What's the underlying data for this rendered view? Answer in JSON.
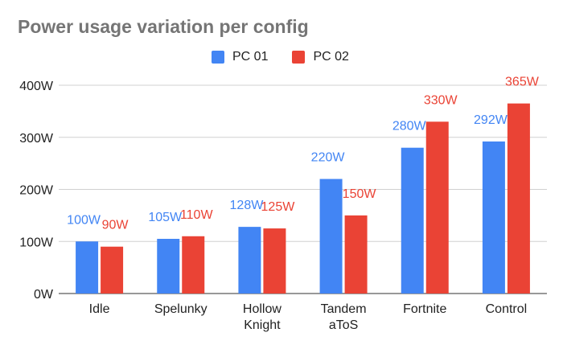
{
  "chart_data": {
    "type": "bar",
    "title": "Power usage variation per config",
    "xlabel": "",
    "ylabel": "",
    "categories": [
      [
        "Idle"
      ],
      [
        "Spelunky"
      ],
      [
        "Hollow",
        "Knight"
      ],
      [
        "Tandem",
        "aToS"
      ],
      [
        "Fortnite"
      ],
      [
        "Control"
      ]
    ],
    "series": [
      {
        "name": "PC 01",
        "color": "#4285f4",
        "values": [
          100,
          105,
          128,
          220,
          280,
          292
        ],
        "labels": [
          "100W",
          "105W",
          "128W",
          "220W",
          "280W",
          "292W"
        ]
      },
      {
        "name": "PC 02",
        "color": "#ea4335",
        "values": [
          90,
          110,
          125,
          150,
          330,
          365
        ],
        "labels": [
          "90W",
          "110W",
          "125W",
          "150W",
          "330W",
          "365W"
        ]
      }
    ],
    "ylim": [
      0,
      400
    ],
    "yticks": [
      0,
      100,
      200,
      300,
      400
    ],
    "ytick_labels": [
      "0W",
      "100W",
      "200W",
      "300W",
      "400W"
    ],
    "grid": true,
    "legend_position": "top-center"
  }
}
